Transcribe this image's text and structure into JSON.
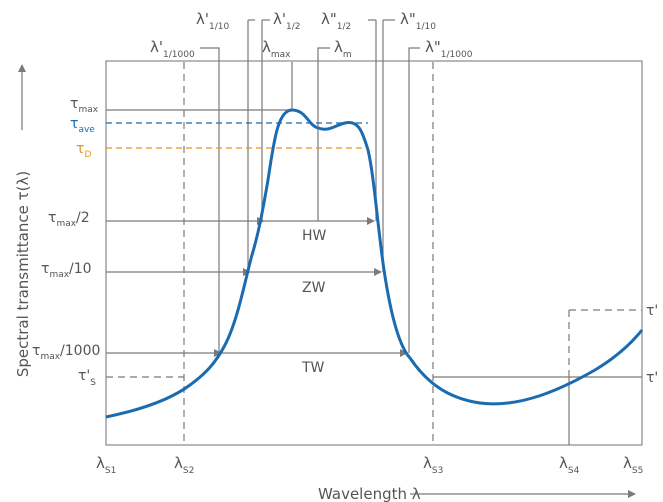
{
  "colors": {
    "curve": "#1a6bb0",
    "ave": "#1a6bb0",
    "d": "#e8951c",
    "lines": "#7a7a7a",
    "text": "#555555"
  },
  "axes": {
    "y_label": "Spectral transmittance τ(λ)",
    "x_label": "Wavelength λ"
  },
  "top_labels": {
    "l1_1000": {
      "sym": "λ'",
      "sub": "1/1000"
    },
    "l1_10": {
      "sym": "λ'",
      "sub": "1/10"
    },
    "l1_2": {
      "sym": "λ'",
      "sub": "1/2"
    },
    "lmax": {
      "sym": "λ",
      "sub": "max"
    },
    "lm": {
      "sym": "λ",
      "sub": "m"
    },
    "l2_2": {
      "sym": "λ\"",
      "sub": "1/2"
    },
    "l2_10": {
      "sym": "λ\"",
      "sub": "1/10"
    },
    "l2_1000": {
      "sym": "λ\"",
      "sub": "1/1000"
    }
  },
  "left_labels": {
    "tmax": {
      "sym": "τ",
      "sub": "max",
      "suffix": ""
    },
    "tave": {
      "sym": "τ",
      "sub": "ave",
      "suffix": ""
    },
    "td": {
      "sym": "τ",
      "sub": "D",
      "suffix": ""
    },
    "thalf": {
      "sym": "τ",
      "sub": "max",
      "suffix": "/2"
    },
    "ttenth": {
      "sym": "τ",
      "sub": "max",
      "suffix": "/10"
    },
    "tthou": {
      "sym": "τ",
      "sub": "max",
      "suffix": "/1000"
    },
    "ts": {
      "sym": "τ'",
      "sub": "S",
      "suffix": ""
    }
  },
  "right_labels": {
    "upper": "τ'",
    "lower": "τ'"
  },
  "bottom_labels": {
    "s1": {
      "sym": "λ",
      "sub": "S1"
    },
    "s2": {
      "sym": "λ",
      "sub": "S2"
    },
    "s3": {
      "sym": "λ",
      "sub": "S3"
    },
    "s4": {
      "sym": "λ",
      "sub": "S4"
    },
    "s5": {
      "sym": "λ",
      "sub": "S5"
    }
  },
  "widths": {
    "hw": "HW",
    "zw": "ZW",
    "tw": "TW"
  }
}
